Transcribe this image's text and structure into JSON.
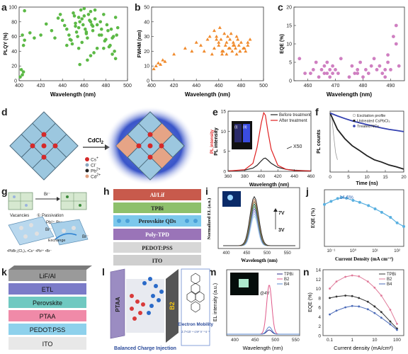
{
  "panels": {
    "a": {
      "letter": "a",
      "ylabel": "PLQY (%)",
      "xlabel": "Wavelength (nm)",
      "xticks": [
        "400",
        "420",
        "440",
        "460",
        "480",
        "500"
      ],
      "yticks": [
        "0",
        "20",
        "40",
        "60",
        "80",
        "100"
      ],
      "color": "#5cb946"
    },
    "b": {
      "letter": "b",
      "ylabel": "FWHM (nm)",
      "xlabel": "Wavelength (nm)",
      "xticks": [
        "400",
        "420",
        "440",
        "460",
        "480",
        "500"
      ],
      "yticks": [
        "0",
        "10",
        "20",
        "30",
        "40",
        "50"
      ],
      "color": "#f08a2c"
    },
    "c": {
      "letter": "c",
      "ylabel": "EQE (%)",
      "xlabel": "Wavelength (nm)",
      "xticks": [
        "460",
        "470",
        "480",
        "490"
      ],
      "yticks": [
        "0",
        "5",
        "10",
        "15",
        "20"
      ],
      "color": "#cf7fc1"
    },
    "d": {
      "letter": "d",
      "arrow_label": "CdCl",
      "arrow_sub": "2",
      "legend": [
        "Cs",
        "Cl",
        "Pb",
        "Cd"
      ],
      "legend_sup": [
        "+",
        "-",
        "2+",
        "2+"
      ]
    },
    "e": {
      "letter": "e",
      "ylabel": "PL intensity",
      "ylabel_extra": "PL intensity",
      "xlabel": "Wavelength (nm)",
      "xticks": [
        "360",
        "380",
        "400",
        "420",
        "440",
        "460"
      ],
      "yticks": [
        "0",
        "5",
        "10",
        "15"
      ],
      "legend": [
        "Before treatment",
        "After treatment"
      ],
      "annot": "X50",
      "inset_i": "(i)",
      "inset_ii": "(ii)"
    },
    "f": {
      "letter": "f",
      "ylabel": "PL counts",
      "xlabel": "Time (ns)",
      "xticks": [
        "0",
        "5",
        "10",
        "15",
        "20"
      ],
      "legend": [
        "Excitation profile",
        "Untreated CsPbCl₃",
        "Treated NCs"
      ]
    },
    "g": {
      "letter": "g",
      "labels": {
        "vac": "Vacancies",
        "pass": "① Passivation",
        "br_top": "Br⁻",
        "br_mid": "Pb²⁺ Br⁻",
        "br_low": "Br⁻",
        "exchange": "Exchange",
        "br_right": "Br⁻",
        "legend": "•PbBr₂(Cl₃)₄  •Cs⁺  •Pb²⁺  •Br⁻"
      }
    },
    "h": {
      "letter": "h",
      "layers": [
        "Al/Lif",
        "TPBi",
        "Perovskite QDs",
        "Poly-TPD",
        "PEDOT:PSS",
        "ITO"
      ]
    },
    "i": {
      "letter": "i",
      "ylabel": "Normalized EL (a.u.)",
      "xlabel": "Wavelength (nm)",
      "xticks": [
        "400",
        "450",
        "500",
        "550"
      ],
      "annot_top": "7V",
      "annot_bot": "3V"
    },
    "j": {
      "letter": "j",
      "ylabel": "EQE (%)",
      "xlabel": "Current Density (mA cm⁻²)",
      "annot": "14.6%",
      "xticks": [
        "10⁻¹",
        "10⁰",
        "10¹",
        "10²"
      ]
    },
    "k": {
      "letter": "k",
      "layers": [
        "LiF/Al",
        "ETL",
        "Perovskite",
        "PTAA",
        "PEDOT:PSS",
        "ITO"
      ]
    },
    "l": {
      "letter": "l",
      "left_layer": "PTAA",
      "right_layer": "B2",
      "caption": "Balanced Charge Injection",
      "mobility_title": "Electron Mobility",
      "mobility_value": "2.7×10⁻⁴ cm² V⁻¹ s⁻¹"
    },
    "m": {
      "letter": "m",
      "ylabel": "EL intensity (a.u.)",
      "xlabel": "Wavelength (nm)",
      "xticks": [
        "400",
        "450",
        "500",
        "550"
      ],
      "legend": [
        "TPBi",
        "B2",
        "B4"
      ],
      "inset": "@4V"
    },
    "n": {
      "letter": "n",
      "ylabel": "EQE (%)",
      "xlabel": "Current density (mA/cm²)",
      "xticks": [
        "0.1",
        "1",
        "10",
        "100"
      ],
      "yticks": [
        "0",
        "2",
        "4",
        "6",
        "8",
        "10",
        "12",
        "14"
      ],
      "legend": [
        "TPBi",
        "B2",
        "B4"
      ]
    }
  },
  "chart_data": [
    {
      "type": "scatter",
      "panel": "a",
      "xlabel": "Wavelength (nm)",
      "ylabel": "PLQY (%)",
      "xlim": [
        400,
        500
      ],
      "ylim": [
        0,
        100
      ],
      "x": [
        401,
        402,
        403,
        404,
        405,
        404,
        403,
        405,
        410,
        414,
        420,
        425,
        430,
        433,
        436,
        438,
        440,
        442,
        444,
        446,
        448,
        449,
        450,
        451,
        452,
        453,
        454,
        455,
        456,
        457,
        458,
        459,
        460,
        461,
        462,
        463,
        464,
        465,
        466,
        467,
        468,
        470,
        472,
        474,
        476,
        478,
        480,
        482,
        484,
        486,
        488,
        490,
        463,
        466,
        469,
        472,
        458,
        456,
        462,
        475,
        478,
        481,
        485,
        487,
        489,
        491,
        452,
        455,
        460,
        470,
        476,
        479,
        483,
        486,
        489,
        466,
        468,
        444,
        447,
        455
      ],
      "y": [
        5,
        15,
        8,
        12,
        95,
        48,
        62,
        55,
        65,
        58,
        62,
        77,
        68,
        58,
        85,
        90,
        82,
        75,
        70,
        62,
        55,
        50,
        92,
        88,
        78,
        66,
        60,
        72,
        80,
        96,
        84,
        76,
        88,
        70,
        64,
        58,
        90,
        82,
        94,
        76,
        68,
        84,
        76,
        62,
        70,
        44,
        56,
        68,
        48,
        58,
        40,
        62,
        28,
        34,
        38,
        44,
        52,
        22,
        66,
        80,
        90,
        76,
        70,
        60,
        86,
        72,
        74,
        86,
        98,
        96,
        62,
        54,
        46,
        36,
        30,
        80,
        74,
        48,
        56,
        44
      ]
    },
    {
      "type": "scatter",
      "panel": "b",
      "xlabel": "Wavelength (nm)",
      "ylabel": "FWHM (nm)",
      "xlim": [
        400,
        500
      ],
      "ylim": [
        0,
        50
      ],
      "x": [
        402,
        404,
        406,
        408,
        410,
        412,
        420,
        430,
        436,
        440,
        444,
        447,
        450,
        452,
        454,
        456,
        458,
        460,
        461,
        462,
        463,
        464,
        465,
        466,
        467,
        468,
        469,
        470,
        471,
        472,
        473,
        474,
        475,
        476,
        477,
        478,
        479,
        480,
        482,
        484,
        486,
        488,
        460,
        463,
        467,
        470,
        473,
        476,
        479,
        483,
        486,
        456,
        458
      ],
      "y": [
        8,
        10,
        12,
        11,
        14,
        13,
        18,
        22,
        20,
        26,
        24,
        20,
        28,
        30,
        18,
        34,
        28,
        24,
        36,
        28,
        18,
        20,
        32,
        24,
        26,
        30,
        22,
        28,
        32,
        20,
        26,
        24,
        22,
        30,
        28,
        24,
        20,
        26,
        22,
        20,
        24,
        28,
        26,
        20,
        18,
        22,
        24,
        18,
        20,
        22,
        26,
        22,
        30
      ]
    },
    {
      "type": "scatter",
      "panel": "c",
      "xlabel": "Wavelength (nm)",
      "ylabel": "EQE (%)",
      "xlim": [
        455,
        495
      ],
      "ylim": [
        0,
        20
      ],
      "x": [
        457,
        459,
        461,
        462,
        463,
        464,
        465,
        466,
        466,
        467,
        467,
        468,
        468,
        469,
        469,
        470,
        471,
        472,
        475,
        476,
        477,
        478,
        478,
        479,
        480,
        481,
        482,
        483,
        484,
        485,
        486,
        487,
        488,
        488,
        489,
        489,
        490,
        491,
        492,
        492,
        493
      ],
      "y": [
        6,
        2,
        2,
        3,
        5,
        1,
        3,
        2,
        4,
        2,
        5,
        1,
        3,
        2,
        4,
        3,
        2,
        6,
        1,
        4,
        2,
        3,
        2,
        5,
        1,
        3,
        2,
        4,
        6,
        3,
        4,
        2,
        1,
        3,
        5,
        7,
        3,
        12,
        10,
        15,
        4
      ]
    },
    {
      "type": "line",
      "panel": "e",
      "xlabel": "Wavelength (nm)",
      "ylabel": "PL intensity",
      "xlim": [
        360,
        460
      ],
      "ylim": [
        0,
        15
      ],
      "series": [
        {
          "name": "Before treatment",
          "x": [
            360,
            380,
            390,
            395,
            400,
            403,
            405,
            408,
            412,
            420,
            430,
            440,
            460
          ],
          "y": [
            0.1,
            0.3,
            0.8,
            1.5,
            2.6,
            3.2,
            3.3,
            2.8,
            2.0,
            1.0,
            0.5,
            0.3,
            0.1
          ]
        },
        {
          "name": "After treatment",
          "x": [
            360,
            380,
            390,
            395,
            400,
            403,
            405,
            408,
            412,
            420,
            430,
            440,
            460
          ],
          "y": [
            0.1,
            0.4,
            2.0,
            6.0,
            12.0,
            14.6,
            14.0,
            10.0,
            5.5,
            1.5,
            0.5,
            0.2,
            0.1
          ]
        }
      ]
    },
    {
      "type": "line",
      "panel": "f",
      "xlabel": "Time (ns)",
      "ylabel": "PL counts",
      "xlim": [
        0,
        20
      ],
      "series": [
        {
          "name": "Excitation profile",
          "x": [
            0,
            0.5,
            1,
            1.5,
            2
          ],
          "y": [
            1,
            0.6,
            0.1,
            0.02,
            0.01
          ]
        },
        {
          "name": "Untreated CsPbCl₃",
          "x": [
            0,
            2,
            4,
            6,
            8,
            10,
            12,
            14,
            16,
            18,
            20
          ],
          "y": [
            1,
            0.2,
            0.08,
            0.04,
            0.025,
            0.015,
            0.01,
            0.008,
            0.006,
            0.005,
            0.004
          ]
        },
        {
          "name": "Treated NCs",
          "x": [
            0,
            2,
            4,
            6,
            8,
            10,
            12,
            14,
            16,
            18,
            20
          ],
          "y": [
            1,
            0.75,
            0.58,
            0.46,
            0.38,
            0.32,
            0.27,
            0.23,
            0.2,
            0.18,
            0.16
          ]
        }
      ]
    },
    {
      "type": "line",
      "panel": "n",
      "xlabel": "Current density (mA/cm²)",
      "ylabel": "EQE (%)",
      "xlim": [
        0.1,
        100
      ],
      "ylim": [
        0,
        14
      ],
      "series": [
        {
          "name": "TPBi",
          "x": [
            0.1,
            0.2,
            0.5,
            1,
            2,
            5,
            10,
            20,
            50,
            100
          ],
          "y": [
            8,
            8.3,
            8.5,
            8.4,
            8.0,
            7.2,
            6.2,
            5.0,
            3.0,
            1.5
          ]
        },
        {
          "name": "B2",
          "x": [
            0.1,
            0.2,
            0.5,
            1,
            2,
            5,
            10,
            20,
            50,
            100
          ],
          "y": [
            10,
            11.5,
            12.5,
            12.8,
            12.6,
            11.5,
            10.2,
            8.5,
            5.5,
            2.5
          ]
        },
        {
          "name": "B4",
          "x": [
            0.1,
            0.2,
            0.5,
            1,
            2,
            5,
            10,
            20,
            50,
            100
          ],
          "y": [
            4.5,
            5.3,
            6.0,
            6.3,
            6.2,
            5.6,
            4.8,
            3.8,
            2.4,
            1.2
          ]
        }
      ]
    },
    {
      "type": "line",
      "panel": "j",
      "xlabel": "Current Density (mA cm⁻²)",
      "ylabel": "EQE (%)",
      "annotations": [
        "14.6%"
      ],
      "xlim": [
        0.05,
        200
      ],
      "series": [
        {
          "x": [
            0.05,
            0.1,
            0.2,
            0.3,
            0.5,
            1,
            2,
            5,
            10,
            20,
            50,
            100,
            200
          ],
          "y": [
            11,
            12.5,
            14,
            14.6,
            14.2,
            13,
            12,
            10.5,
            9.2,
            8,
            6.5,
            5.2,
            4.5
          ]
        }
      ]
    }
  ]
}
